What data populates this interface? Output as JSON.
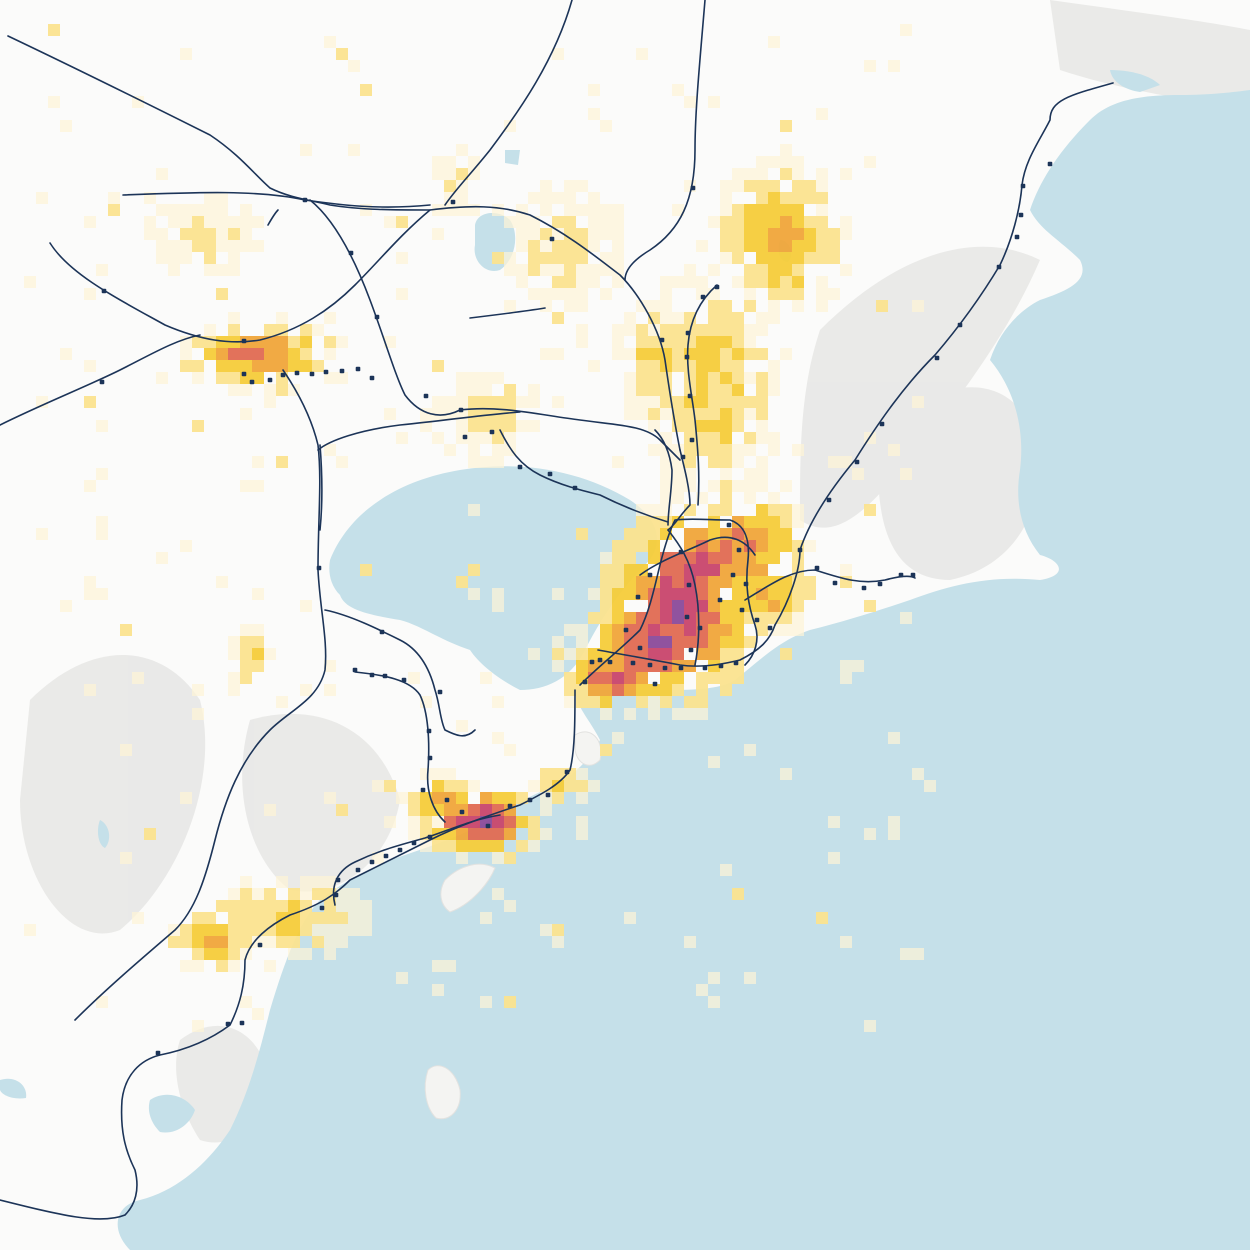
{
  "map": {
    "colors": {
      "land": "#fbfbfa",
      "water": "#c5e0e9",
      "relief": "#dcdcda",
      "rail": "#1c3458",
      "station": "#1c3458",
      "density": [
        "#fdf3d6",
        "#fbe38f",
        "#f6cc3a",
        "#f0a53a",
        "#e06a52",
        "#c8446c",
        "#8a4a9a"
      ]
    }
  }
}
